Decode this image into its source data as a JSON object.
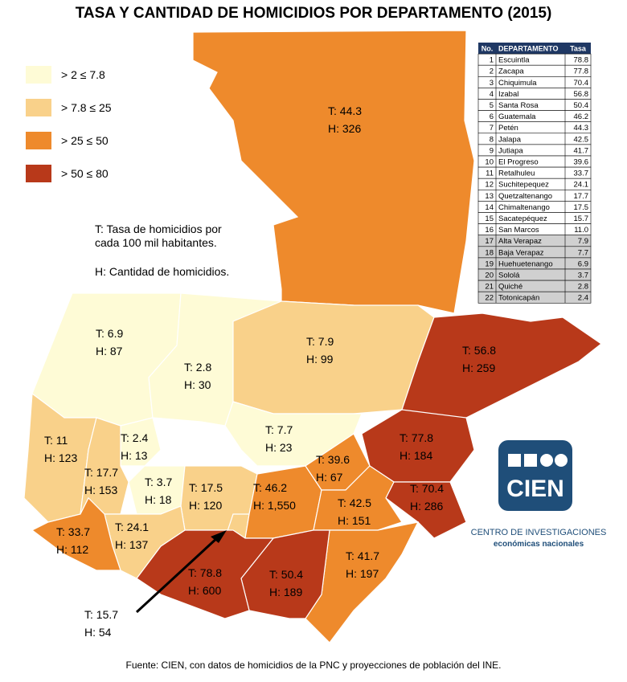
{
  "title": "TASA Y CANTIDAD DE HOMICIDIOS POR DEPARTAMENTO (2015)",
  "legend": [
    {
      "label": "> 2 ≤ 7.8",
      "color": "#fefbd6"
    },
    {
      "label": "> 7.8  ≤ 25",
      "color": "#f9d18a"
    },
    {
      "label": "> 25  ≤ 50",
      "color": "#ee8a2c"
    },
    {
      "label": "> 50  ≤ 80",
      "color": "#b8391a"
    }
  ],
  "notes": [
    "T: Tasa de homicidios por",
    "cada 100 mil habitantes.",
    "H: Cantidad de homicidios."
  ],
  "map_labels": [
    {
      "rate": "T: 44.3",
      "count": "H: 326"
    },
    {
      "rate": "T: 6.9",
      "count": "H: 87"
    },
    {
      "rate": "T: 2.8",
      "count": "H: 30"
    },
    {
      "rate": "T: 7.9",
      "count": "H: 99"
    },
    {
      "rate": "T: 56.8",
      "count": "H: 259"
    },
    {
      "rate": "T: 7.7",
      "count": "H: 23"
    },
    {
      "rate": "T: 11",
      "count": "H: 123"
    },
    {
      "rate": "T: 2.4",
      "count": "H: 13"
    },
    {
      "rate": "T: 17.7",
      "count": "H: 153"
    },
    {
      "rate": "T: 3.7",
      "count": "H: 18"
    },
    {
      "rate": "T: 17.5",
      "count": "H: 120"
    },
    {
      "rate": "T: 46.2",
      "count": "H: 1,550"
    },
    {
      "rate": "T: 39.6",
      "count": "H: 67"
    },
    {
      "rate": "T: 77.8",
      "count": "H: 184"
    },
    {
      "rate": "T: 70.4",
      "count": "H: 286"
    },
    {
      "rate": "T: 42.5",
      "count": "H: 151"
    },
    {
      "rate": "T: 41.7",
      "count": "H: 197"
    },
    {
      "rate": "T: 50.4",
      "count": "H: 189"
    },
    {
      "rate": "T: 78.8",
      "count": "H: 600"
    },
    {
      "rate": "T: 24.1",
      "count": "H: 137"
    },
    {
      "rate": "T: 33.7",
      "count": "H: 112"
    },
    {
      "rate": "T: 15.7",
      "count": "H: 54"
    }
  ],
  "table": {
    "header": [
      "No.",
      "DEPARTAMENTO",
      "Tasa"
    ],
    "rows": [
      [
        "1",
        "Escuintla",
        "78.8"
      ],
      [
        "2",
        "Zacapa",
        "77.8"
      ],
      [
        "3",
        "Chiquimula",
        "70.4"
      ],
      [
        "4",
        "Izabal",
        "56.8"
      ],
      [
        "5",
        "Santa Rosa",
        "50.4"
      ],
      [
        "6",
        "Guatemala",
        "46.2"
      ],
      [
        "7",
        "Petén",
        "44.3"
      ],
      [
        "8",
        "Jalapa",
        "42.5"
      ],
      [
        "9",
        "Jutiapa",
        "41.7"
      ],
      [
        "10",
        "El Progreso",
        "39.6"
      ],
      [
        "11",
        "Retalhuleu",
        "33.7"
      ],
      [
        "12",
        "Suchitepequez",
        "24.1"
      ],
      [
        "13",
        "Quetzaltenango",
        "17.7"
      ],
      [
        "14",
        "Chimaltenango",
        "17.5"
      ],
      [
        "15",
        "Sacatepéquez",
        "15.7"
      ],
      [
        "16",
        "San Marcos",
        "11.0"
      ],
      [
        "17",
        "Alta Verapaz",
        "7.9"
      ],
      [
        "18",
        "Baja Verapaz",
        "7.7"
      ],
      [
        "19",
        "Huehuetenango",
        "6.9"
      ],
      [
        "20",
        "Sololá",
        "3.7"
      ],
      [
        "21",
        "Quiché",
        "2.8"
      ],
      [
        "22",
        "Totonicapán",
        "2.4"
      ]
    ]
  },
  "logo": {
    "name": "CIEN",
    "subtitle": "CENTRO DE INVESTIGACIONES",
    "tagline": "económicas nacionales"
  },
  "source": "Fuente: CIEN, con datos de homicidios de la PNC y proyecciones de población del INE."
}
